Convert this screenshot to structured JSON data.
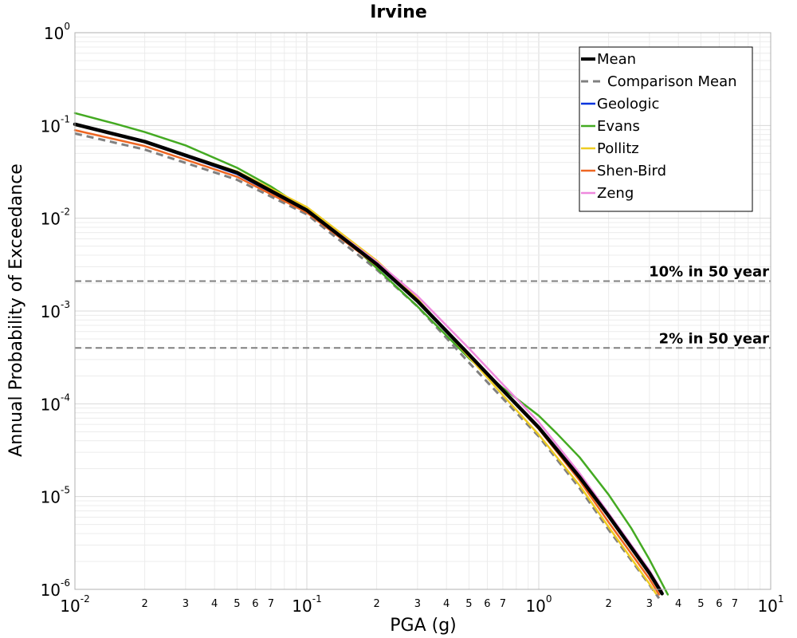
{
  "chart_data": {
    "type": "line",
    "title": "Irvine",
    "xlabel": "PGA (g)",
    "ylabel": "Annual Probability of Exceedance",
    "xscale": "log",
    "yscale": "log",
    "xlim": [
      0.01,
      10
    ],
    "ylim": [
      1e-06,
      1
    ],
    "grid": true,
    "legend_position": "top-right",
    "x_tick_labels": {
      "major": [
        {
          "value": 0.01,
          "base": "10",
          "exp": "-2"
        },
        {
          "value": 0.1,
          "base": "10",
          "exp": "-1"
        },
        {
          "value": 1,
          "base": "10",
          "exp": "0"
        },
        {
          "value": 10,
          "base": "10",
          "exp": "1"
        }
      ],
      "minor": [
        "2",
        "3",
        "4",
        "5",
        "6",
        "7"
      ]
    },
    "y_tick_labels": [
      {
        "value": 1,
        "base": "10",
        "exp": "0"
      },
      {
        "value": 0.1,
        "base": "10",
        "exp": "-1"
      },
      {
        "value": 0.01,
        "base": "10",
        "exp": "-2"
      },
      {
        "value": 0.001,
        "base": "10",
        "exp": "-3"
      },
      {
        "value": 0.0001,
        "base": "10",
        "exp": "-4"
      },
      {
        "value": 1e-05,
        "base": "10",
        "exp": "-5"
      },
      {
        "value": 1e-06,
        "base": "10",
        "exp": "-6"
      }
    ],
    "reference_lines": [
      {
        "label": "10% in 50 year",
        "y": 0.0021,
        "color": "#808080"
      },
      {
        "label": "2% in 50 year",
        "y": 0.0004,
        "color": "#808080"
      }
    ],
    "series": [
      {
        "name": "Comparison Mean",
        "color": "#808080",
        "dash": true,
        "width": 3,
        "x": [
          0.01,
          0.02,
          0.05,
          0.1,
          0.2,
          0.3,
          0.5,
          0.7,
          1.0,
          1.5,
          2.0,
          3.0,
          3.3
        ],
        "y": [
          0.082,
          0.055,
          0.026,
          0.011,
          0.0028,
          0.00112,
          0.000278,
          0.000114,
          4.45e-05,
          1.23e-05,
          4.4e-06,
          1.12e-06,
          8e-07
        ]
      },
      {
        "name": "Geologic",
        "color": "#0033dd",
        "dash": false,
        "width": 2.5,
        "x": [
          0.01,
          0.02,
          0.05,
          0.1,
          0.2,
          0.3,
          0.5,
          0.7,
          1.0,
          1.5,
          2.0,
          3.0,
          3.4
        ],
        "y": [
          0.102,
          0.066,
          0.03,
          0.0118,
          0.0031,
          0.00126,
          0.00033,
          0.000138,
          5.6e-05,
          1.63e-05,
          6.2e-06,
          1.5e-06,
          9e-07
        ]
      },
      {
        "name": "Evans",
        "color": "#44aa22",
        "dash": false,
        "width": 2.5,
        "x": [
          0.01,
          0.015,
          0.02,
          0.03,
          0.05,
          0.07,
          0.1,
          0.15,
          0.2,
          0.3,
          0.5,
          0.7,
          1.0,
          1.2,
          1.5,
          2.0,
          2.5,
          3.0,
          3.6
        ],
        "y": [
          0.136,
          0.104,
          0.085,
          0.061,
          0.035,
          0.022,
          0.0122,
          0.0057,
          0.0029,
          0.00112,
          0.00031,
          0.000148,
          7.45e-05,
          4.75e-05,
          2.65e-05,
          1.05e-05,
          4.6e-06,
          2.1e-06,
          8.8e-07
        ]
      },
      {
        "name": "Pollitz",
        "color": "#eecc22",
        "dash": false,
        "width": 2.5,
        "x": [
          0.01,
          0.02,
          0.05,
          0.1,
          0.2,
          0.3,
          0.5,
          0.7,
          1.0,
          1.5,
          2.0,
          3.0,
          3.2
        ],
        "y": [
          0.101,
          0.067,
          0.032,
          0.0132,
          0.0035,
          0.00135,
          0.00032,
          0.000124,
          4.65e-05,
          1.32e-05,
          4.7e-06,
          1.15e-06,
          9e-07
        ]
      },
      {
        "name": "Shen-Bird",
        "color": "#ee6622",
        "dash": false,
        "width": 2.5,
        "x": [
          0.01,
          0.02,
          0.05,
          0.1,
          0.2,
          0.3,
          0.5,
          0.7,
          1.0,
          1.5,
          2.0,
          3.0,
          3.3
        ],
        "y": [
          0.089,
          0.06,
          0.028,
          0.0115,
          0.0031,
          0.0013,
          0.00034,
          0.000137,
          5.35e-05,
          1.49e-05,
          5.3e-06,
          1.3e-06,
          8.8e-07
        ]
      },
      {
        "name": "Zeng",
        "color": "#ee88dd",
        "dash": false,
        "width": 2.5,
        "x": [
          0.01,
          0.02,
          0.05,
          0.1,
          0.2,
          0.3,
          0.5,
          0.7,
          1.0,
          1.5,
          2.0,
          3.0,
          3.4
        ],
        "y": [
          0.104,
          0.068,
          0.031,
          0.0123,
          0.0034,
          0.00145,
          0.000395,
          0.000162,
          6.35e-05,
          1.78e-05,
          6.6e-06,
          1.6e-06,
          9.5e-07
        ]
      },
      {
        "name": "Mean",
        "color": "#000000",
        "dash": false,
        "width": 4.5,
        "x": [
          0.01,
          0.02,
          0.05,
          0.1,
          0.2,
          0.3,
          0.5,
          0.7,
          1.0,
          1.5,
          2.0,
          3.0,
          3.4
        ],
        "y": [
          0.103,
          0.067,
          0.031,
          0.0122,
          0.0032,
          0.00128,
          0.00034,
          0.00014,
          5.55e-05,
          1.62e-05,
          6.2e-06,
          1.5e-06,
          9e-07
        ]
      }
    ],
    "legend_order": [
      "Mean",
      "Comparison Mean",
      "Geologic",
      "Evans",
      "Pollitz",
      "Shen-Bird",
      "Zeng"
    ]
  }
}
